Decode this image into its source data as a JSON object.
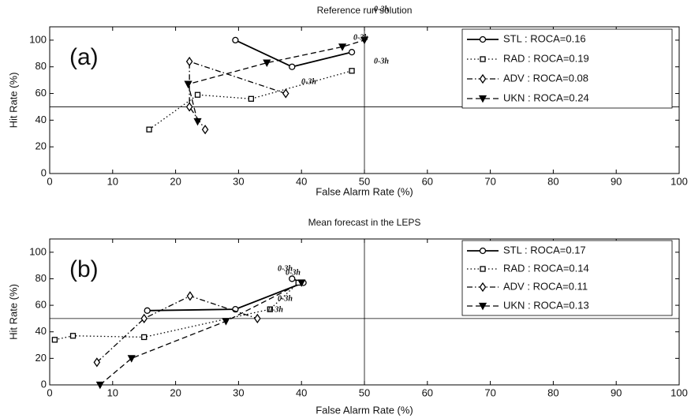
{
  "chart_data": [
    {
      "type": "line",
      "title": "Reference run solution",
      "panel_label": "(a)",
      "x_label": "False Alarm Rate (%)",
      "y_label": "Hit Rate (%)",
      "xlim": [
        0,
        100
      ],
      "ylim": [
        0,
        110
      ],
      "xticks": [
        0,
        10,
        20,
        30,
        40,
        50,
        60,
        70,
        80,
        90,
        100
      ],
      "yticks": [
        0,
        20,
        40,
        60,
        80,
        100
      ],
      "ref_lines": {
        "x": 50,
        "y": 50
      },
      "annotations": [
        "0-3h",
        "0-3h",
        "0-3h",
        "0-3h"
      ],
      "series": [
        {
          "name": "STL : ROCA=0.16",
          "color": "#000000",
          "marker": "circle",
          "line_style": "solid",
          "x": [
            29.5,
            38.5,
            48
          ],
          "values": [
            100,
            80,
            91
          ]
        },
        {
          "name": "RAD : ROCA=0.19",
          "color": "#000000",
          "marker": "square",
          "line_style": "dotted",
          "x": [
            15.8,
            23.5,
            32,
            48
          ],
          "values": [
            33,
            59,
            56,
            77
          ]
        },
        {
          "name": "ADV : ROCA=0.08",
          "color": "#000000",
          "marker": "diamond",
          "line_style": "dashdot",
          "x": [
            37.5,
            22.2,
            22.2,
            24.7
          ],
          "values": [
            60,
            84,
            50,
            33
          ]
        },
        {
          "name": "UKN : ROCA=0.24",
          "color": "#000000",
          "marker": "triangle-down",
          "line_style": "dashed",
          "x": [
            23.5,
            22,
            34.5,
            46.5,
            50
          ],
          "values": [
            39,
            67,
            83,
            95,
            100
          ]
        }
      ]
    },
    {
      "type": "line",
      "title": "Mean forecast in the LEPS",
      "panel_label": "(b)",
      "x_label": "False Alarm Rate (%)",
      "y_label": "Hit Rate (%)",
      "xlim": [
        0,
        100
      ],
      "ylim": [
        0,
        110
      ],
      "xticks": [
        0,
        10,
        20,
        30,
        40,
        50,
        60,
        70,
        80,
        90,
        100
      ],
      "yticks": [
        0,
        20,
        40,
        60,
        80,
        100
      ],
      "ref_lines": {
        "x": 50,
        "y": 50
      },
      "annotations": [
        "0-3h",
        "0-3h",
        "0-3h",
        "0-3h"
      ],
      "series": [
        {
          "name": "STL : ROCA=0.17",
          "color": "#000000",
          "marker": "circle",
          "line_style": "solid",
          "x": [
            15.5,
            29.5,
            40.3,
            38.5
          ],
          "values": [
            56,
            57,
            77,
            80
          ]
        },
        {
          "name": "RAD : ROCA=0.14",
          "color": "#000000",
          "marker": "square",
          "line_style": "dotted",
          "x": [
            0.8,
            3.7,
            15,
            35,
            39.5
          ],
          "values": [
            34,
            37,
            36,
            57,
            77
          ]
        },
        {
          "name": "ADV : ROCA=0.11",
          "color": "#000000",
          "marker": "diamond",
          "line_style": "dashdot",
          "x": [
            7.5,
            15,
            22.3,
            33
          ],
          "values": [
            17,
            50,
            67,
            50
          ]
        },
        {
          "name": "UKN : ROCA=0.13",
          "color": "#000000",
          "marker": "triangle-down",
          "line_style": "dashed",
          "x": [
            8,
            13,
            28,
            40
          ],
          "values": [
            0,
            20,
            48,
            77
          ]
        }
      ]
    }
  ]
}
